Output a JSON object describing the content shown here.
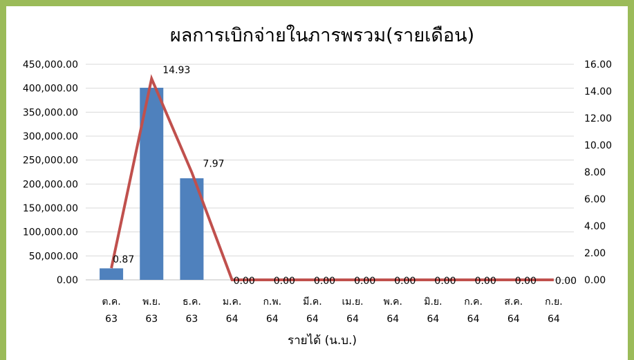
{
  "chart_data": {
    "type": "bar+line",
    "title": "ผลการเบิกจ่ายในภารพรวม(รายเดือน)",
    "xlabel": "รายได้ (น.บ.)",
    "categories": [
      [
        "ต.ค.",
        "63"
      ],
      [
        "พ.ย.",
        "63"
      ],
      [
        "ธ.ค.",
        "63"
      ],
      [
        "ม.ค.",
        "64"
      ],
      [
        "ก.พ.",
        "64"
      ],
      [
        "มี.ค.",
        "64"
      ],
      [
        "เม.ย.",
        "64"
      ],
      [
        "พ.ค.",
        "64"
      ],
      [
        "มิ.ย.",
        "64"
      ],
      [
        "ก.ค.",
        "64"
      ],
      [
        "ส.ค.",
        "64"
      ],
      [
        "ก.ย.",
        "64"
      ]
    ],
    "series": [
      {
        "type": "bar",
        "axis": "left",
        "color": "#4f81bd",
        "values": [
          24000,
          401000,
          212000,
          0,
          0,
          0,
          0,
          0,
          0,
          0,
          0,
          0
        ]
      },
      {
        "type": "line",
        "axis": "right",
        "color": "#c0504d",
        "values": [
          0.87,
          14.93,
          7.97,
          0,
          0,
          0,
          0,
          0,
          0,
          0,
          0,
          0
        ],
        "labels": [
          "0.87",
          "14.93",
          "7.97",
          "0.00",
          "0.00",
          "0.00",
          "0.00",
          "0.00",
          "0.00",
          "0.00",
          "0.00",
          "0.00"
        ]
      }
    ],
    "y_left": {
      "range": [
        0,
        450000
      ],
      "ticks": [
        0,
        50000,
        100000,
        150000,
        200000,
        250000,
        300000,
        350000,
        400000,
        450000
      ],
      "tick_labels": [
        "0.00",
        "50,000.00",
        "100,000.00",
        "150,000.00",
        "200,000.00",
        "250,000.00",
        "300,000.00",
        "350,000.00",
        "400,000.00",
        "450,000.00"
      ]
    },
    "y_right": {
      "range": [
        0,
        16
      ],
      "ticks": [
        0,
        2,
        4,
        6,
        8,
        10,
        12,
        14,
        16
      ],
      "tick_labels": [
        "0.00",
        "2.00",
        "4.00",
        "6.00",
        "8.00",
        "10.00",
        "12.00",
        "14.00",
        "16.00"
      ]
    },
    "grid": true,
    "legend": "none"
  }
}
